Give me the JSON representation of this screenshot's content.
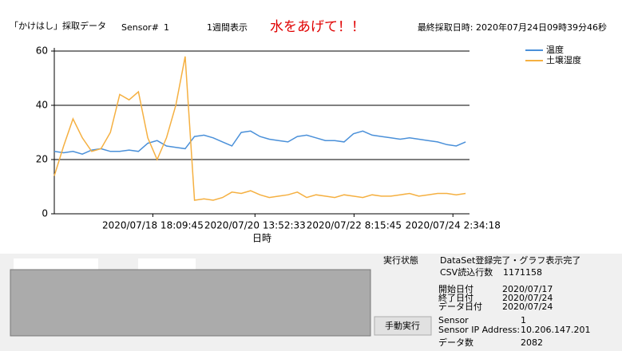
{
  "header": {
    "app_title": "「かけはし」採取データ",
    "sensor_label": "Sensor#",
    "sensor_no": "1",
    "period": "1週間表示",
    "alert": "水をあげて！！",
    "last_time": "最終採取日時: 2020年07月24日09時39分46秒"
  },
  "chart_data": {
    "type": "line",
    "x_label": "日時",
    "grid": true,
    "legend": "top-right",
    "x": [
      "2020/07/17 00:00",
      "2020/07/17 04:00",
      "2020/07/17 08:00",
      "2020/07/17 12:00",
      "2020/07/17 16:00",
      "2020/07/17 20:00",
      "2020/07/18 00:00",
      "2020/07/18 04:00",
      "2020/07/18 08:00",
      "2020/07/18 12:00",
      "2020/07/18 16:00",
      "2020/07/18 20:00",
      "2020/07/19 00:00",
      "2020/07/19 04:00",
      "2020/07/19 08:00",
      "2020/07/19 12:00",
      "2020/07/19 16:00",
      "2020/07/19 20:00",
      "2020/07/20 00:00",
      "2020/07/20 04:00",
      "2020/07/20 08:00",
      "2020/07/20 12:00",
      "2020/07/20 16:00",
      "2020/07/20 20:00",
      "2020/07/21 00:00",
      "2020/07/21 04:00",
      "2020/07/21 08:00",
      "2020/07/21 12:00",
      "2020/07/21 16:00",
      "2020/07/21 20:00",
      "2020/07/22 00:00",
      "2020/07/22 04:00",
      "2020/07/22 08:00",
      "2020/07/22 12:00",
      "2020/07/22 16:00",
      "2020/07/22 20:00",
      "2020/07/23 00:00",
      "2020/07/23 04:00",
      "2020/07/23 08:00",
      "2020/07/23 12:00",
      "2020/07/23 16:00",
      "2020/07/23 20:00",
      "2020/07/24 00:00",
      "2020/07/24 04:00",
      "2020/07/24 08:00"
    ],
    "series": [
      {
        "name": "温度",
        "color": "#4a90d9",
        "values": [
          23,
          22.5,
          23,
          22,
          23.5,
          24,
          23,
          23,
          23.5,
          23,
          26,
          27,
          25,
          24.5,
          24,
          28.5,
          29,
          28,
          26.5,
          25,
          30,
          30.5,
          28.5,
          27.5,
          27,
          26.5,
          28.5,
          29,
          28,
          27,
          27,
          26.5,
          29.5,
          30.5,
          29,
          28.5,
          28,
          27.5,
          28,
          27.5,
          27,
          26.5,
          25.5,
          25,
          26.5
        ]
      },
      {
        "name": "土壌湿度",
        "color": "#f5b041",
        "values": [
          14,
          25,
          35,
          28,
          23,
          24,
          30,
          44,
          42,
          45,
          28,
          20,
          28,
          40,
          58,
          5,
          5.5,
          5,
          6,
          8,
          7.5,
          8.5,
          7,
          6,
          6.5,
          7,
          8,
          6,
          7,
          6.5,
          6,
          7,
          6.5,
          6,
          7,
          6.5,
          6.5,
          7,
          7.5,
          6.5,
          7,
          7.5,
          7.5,
          7,
          7.5
        ]
      }
    ],
    "xlim": [
      "2020/07/17 00:00:00",
      "2020/07/24 09:40:00"
    ],
    "xticks": [
      "2020/07/18 18:09:45",
      "2020/07/20 13:52:33",
      "2020/07/22 8:15:45",
      "2020/07/24 2:34:18"
    ],
    "ylim": [
      0,
      60
    ],
    "yticks": [
      0,
      20,
      40,
      60
    ]
  },
  "status": {
    "label": "実行状態",
    "value": "DataSet登録完了・グラフ表示完了",
    "csv_label": "CSV読込行数",
    "csv_value": "1171158",
    "start_label": "開始日付",
    "start": "2020/07/17",
    "end_label": "終了日付",
    "end": "2020/07/24",
    "data_date_label": "データ日付",
    "data_date": "2020/07/24",
    "sensor_label": "Sensor",
    "sensor": "1",
    "ip_label": "Sensor IP Address:",
    "ip": "10.206.147.201",
    "count_label": "データ数",
    "count": "2082"
  },
  "button": "手動実行"
}
